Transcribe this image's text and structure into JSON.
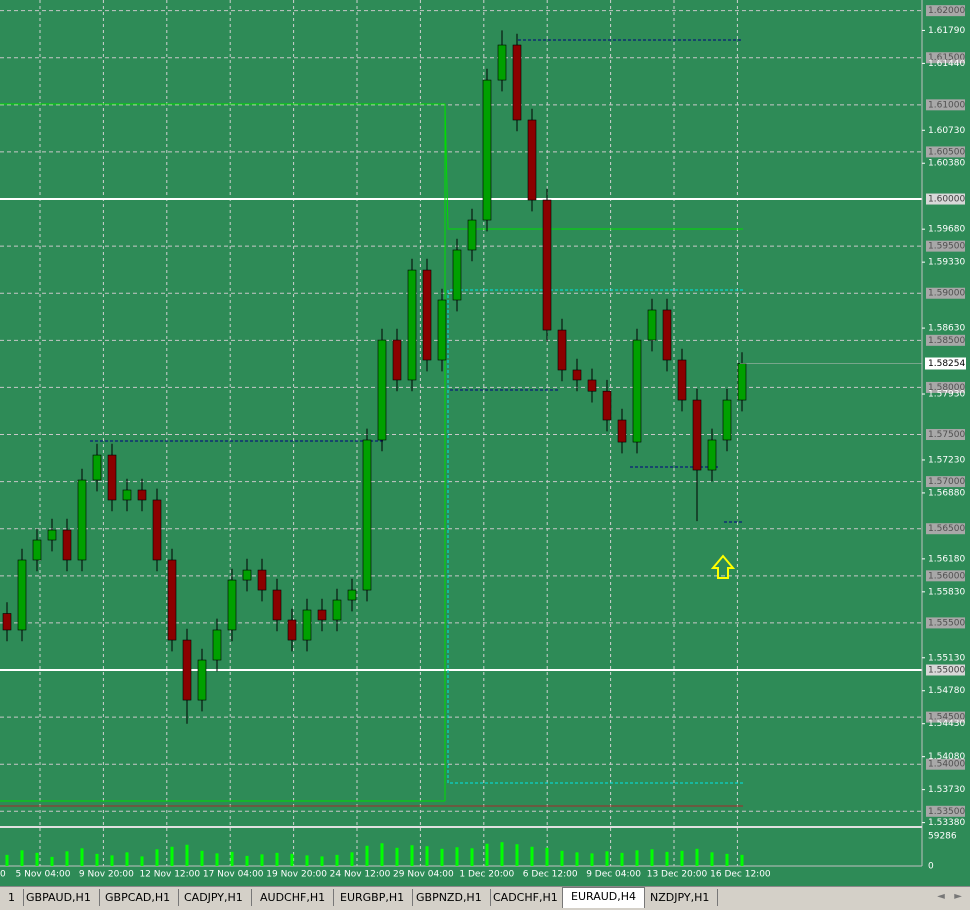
{
  "chart_data": {
    "type": "candlestick",
    "open": [
      1.556,
      1.55425,
      1.56168,
      1.5638,
      1.56486,
      1.56168,
      1.57017,
      1.57282,
      1.56805,
      1.56911,
      1.56805,
      1.56168,
      1.55318,
      1.54681,
      1.55106,
      1.55425,
      1.55955,
      1.56061,
      1.55849,
      1.55531,
      1.55318,
      1.55637,
      1.55531,
      1.55743,
      1.55849,
      1.57442,
      1.58503,
      1.58079,
      1.59246,
      1.58291,
      1.58928,
      1.59459,
      1.59777,
      1.61263,
      1.61635,
      1.60839,
      1.59989,
      1.58609,
      1.58185,
      1.58079,
      1.5796,
      1.57654,
      1.5742,
      1.58503,
      1.58822,
      1.58291,
      1.57866,
      1.57123,
      1.57442,
      1.57866
    ],
    "high": [
      1.5572,
      1.56288,
      1.565,
      1.56606,
      1.56606,
      1.57137,
      1.57402,
      1.57402,
      1.57031,
      1.57031,
      1.56925,
      1.56288,
      1.55438,
      1.55226,
      1.55545,
      1.56075,
      1.56181,
      1.56181,
      1.55969,
      1.55651,
      1.55757,
      1.55757,
      1.55863,
      1.55969,
      1.57562,
      1.58623,
      1.58623,
      1.59366,
      1.59366,
      1.59048,
      1.59579,
      1.59897,
      1.61383,
      1.6179,
      1.61755,
      1.60959,
      1.60109,
      1.58729,
      1.58305,
      1.58199,
      1.5808,
      1.57774,
      1.58623,
      1.58942,
      1.58942,
      1.58411,
      1.57986,
      1.57562,
      1.57986,
      1.58374
    ],
    "low": [
      1.55305,
      1.55305,
      1.56048,
      1.5626,
      1.56048,
      1.56048,
      1.56897,
      1.56685,
      1.56685,
      1.56685,
      1.56048,
      1.55198,
      1.5443,
      1.54561,
      1.54986,
      1.55305,
      1.55835,
      1.55729,
      1.55411,
      1.55198,
      1.55198,
      1.55411,
      1.55411,
      1.55623,
      1.55729,
      1.57322,
      1.57959,
      1.57959,
      1.58171,
      1.58171,
      1.58808,
      1.59339,
      1.59657,
      1.61143,
      1.60719,
      1.59869,
      1.58489,
      1.58065,
      1.57959,
      1.5784,
      1.57534,
      1.573,
      1.573,
      1.58383,
      1.58171,
      1.57746,
      1.5658,
      1.57003,
      1.57322,
      1.57746
    ],
    "close": [
      1.55425,
      1.56168,
      1.5638,
      1.56486,
      1.56168,
      1.57017,
      1.57282,
      1.56805,
      1.56911,
      1.56805,
      1.56168,
      1.55318,
      1.54681,
      1.55106,
      1.55425,
      1.55955,
      1.56061,
      1.55849,
      1.55531,
      1.55318,
      1.55637,
      1.55531,
      1.55743,
      1.55849,
      1.57442,
      1.58503,
      1.58079,
      1.59246,
      1.58291,
      1.58928,
      1.59459,
      1.59777,
      1.61263,
      1.61635,
      1.60839,
      1.59989,
      1.58609,
      1.58185,
      1.58079,
      1.5796,
      1.57654,
      1.5742,
      1.58503,
      1.58822,
      1.58291,
      1.57866,
      1.57123,
      1.57442,
      1.57866,
      1.58254
    ],
    "volume": [
      22000,
      31000,
      26000,
      18000,
      29000,
      35000,
      24000,
      21000,
      27000,
      19000,
      33000,
      38000,
      42000,
      30000,
      25000,
      28000,
      20000,
      23000,
      26000,
      24000,
      21000,
      19000,
      22000,
      27000,
      40000,
      45000,
      36000,
      41000,
      39000,
      34000,
      37000,
      35000,
      44000,
      47000,
      43000,
      38000,
      36000,
      30000,
      27000,
      25000,
      29000,
      26000,
      31000,
      33000,
      28000,
      30000,
      34000,
      27000,
      24000,
      22000
    ],
    "ylim": [
      1.53344,
      1.62113
    ],
    "yticks": [
      {
        "value": 1.6179,
        "label": "1.61790"
      },
      {
        "value": 1.6144,
        "label": "1.61440"
      },
      {
        "value": 1.6073,
        "label": "1.60730"
      },
      {
        "value": 1.6038,
        "label": "1.60380"
      },
      {
        "value": 1.5968,
        "label": "1.59680"
      },
      {
        "value": 1.5933,
        "label": "1.59330"
      },
      {
        "value": 1.5863,
        "label": "1.58630"
      },
      {
        "value": 1.5793,
        "label": "1.57930"
      },
      {
        "value": 1.5723,
        "label": "1.57230"
      },
      {
        "value": 1.5688,
        "label": "1.56880"
      },
      {
        "value": 1.5618,
        "label": "1.56180"
      },
      {
        "value": 1.5583,
        "label": "1.55830"
      },
      {
        "value": 1.5513,
        "label": "1.55130"
      },
      {
        "value": 1.5478,
        "label": "1.54780"
      },
      {
        "value": 1.5443,
        "label": "1.54430"
      },
      {
        "value": 1.5408,
        "label": "1.54080"
      },
      {
        "value": 1.5373,
        "label": "1.53730"
      },
      {
        "value": 1.5338,
        "label": "1.53380"
      }
    ],
    "levels": [
      {
        "value": 1.62,
        "label": "1.62000"
      },
      {
        "value": 1.615,
        "label": "1.61500"
      },
      {
        "value": 1.61,
        "label": "1.61000"
      },
      {
        "value": 1.605,
        "label": "1.60500"
      },
      {
        "value": 1.595,
        "label": "1.59500"
      },
      {
        "value": 1.59,
        "label": "1.59000"
      },
      {
        "value": 1.585,
        "label": "1.58500"
      },
      {
        "value": 1.58,
        "label": "1.58000"
      },
      {
        "value": 1.575,
        "label": "1.57500"
      },
      {
        "value": 1.57,
        "label": "1.57000"
      },
      {
        "value": 1.565,
        "label": "1.56500"
      },
      {
        "value": 1.56,
        "label": "1.56000"
      },
      {
        "value": 1.555,
        "label": "1.55500"
      },
      {
        "value": 1.545,
        "label": "1.54500"
      },
      {
        "value": 1.54,
        "label": "1.54000"
      },
      {
        "value": 1.535,
        "label": "1.53500"
      }
    ],
    "solid_levels": [
      {
        "value": 1.6,
        "label": "1.60000"
      },
      {
        "value": 1.55,
        "label": "1.55000"
      }
    ],
    "current_price": {
      "value": 1.58254,
      "label": "1.58254"
    },
    "volume_ticks": [
      59286,
      0
    ],
    "x_labels": [
      "0",
      "5 Nov 04:00",
      "9 Nov 20:00",
      "12 Nov 12:00",
      "17 Nov 04:00",
      "19 Nov 20:00",
      "24 Nov 12:00",
      "29 Nov 04:00",
      "1 Dec 20:00",
      "6 Dec 12:00",
      "9 Dec 04:00",
      "13 Dec 20:00",
      "16 Dec 12:00"
    ],
    "grid": true,
    "colors": {
      "background": "#2e8b57",
      "bull": "#00a000",
      "bear": "#8b0000",
      "volume": "#00ff00"
    }
  },
  "tabs": [
    {
      "label": "1",
      "active": false
    },
    {
      "label": "GBPAUD,H1",
      "active": false
    },
    {
      "label": "GBPCAD,H1",
      "active": false
    },
    {
      "label": "CADJPY,H1",
      "active": false
    },
    {
      "label": "AUDCHF,H1",
      "active": false
    },
    {
      "label": "EURGBP,H1",
      "active": false
    },
    {
      "label": "GBPNZD,H1",
      "active": false
    },
    {
      "label": "CADCHF,H1",
      "active": false
    },
    {
      "label": "EURAUD,H4",
      "active": true
    },
    {
      "label": "NZDJPY,H1",
      "active": false
    }
  ]
}
